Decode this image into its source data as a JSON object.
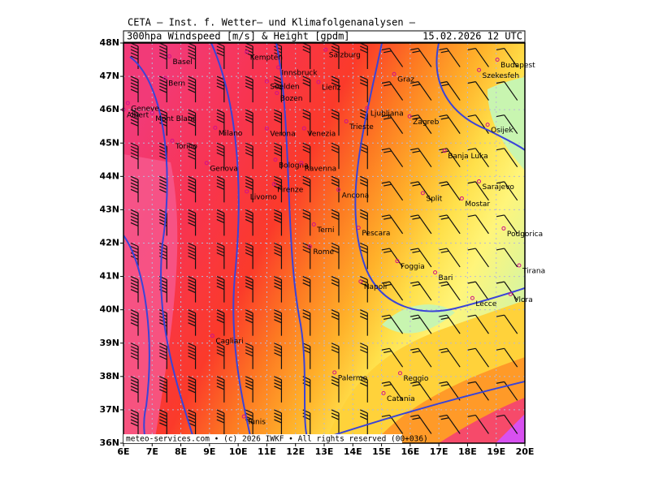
{
  "header": {
    "institute": "CETA — Inst. f. Wetter— und Klimafolgenanalysen —",
    "product": "300hpa Windspeed [m/s] & Height [gpdm]",
    "date": "15.02.2026 12 UTC"
  },
  "axes": {
    "lat_labels": [
      "48N",
      "47N",
      "46N",
      "45N",
      "44N",
      "43N",
      "42N",
      "41N",
      "40N",
      "39N",
      "38N",
      "37N",
      "36N"
    ],
    "lon_labels": [
      "6E",
      "7E",
      "8E",
      "9E",
      "10E",
      "11E",
      "12E",
      "13E",
      "14E",
      "15E",
      "16E",
      "17E",
      "18E",
      "19E",
      "20E"
    ]
  },
  "cities": [
    {
      "name": "Basel"
    },
    {
      "name": "Bern"
    },
    {
      "name": "Geneve"
    },
    {
      "name": "Albert"
    },
    {
      "name": "Mont Blanc"
    },
    {
      "name": "Torino"
    },
    {
      "name": "Genova"
    },
    {
      "name": "Milano"
    },
    {
      "name": "Kempten"
    },
    {
      "name": "Innsbruck"
    },
    {
      "name": "Soelden"
    },
    {
      "name": "Bozen"
    },
    {
      "name": "Lienz"
    },
    {
      "name": "Salzburg"
    },
    {
      "name": "Graz"
    },
    {
      "name": "Verona"
    },
    {
      "name": "Venezia"
    },
    {
      "name": "Bologna"
    },
    {
      "name": "Ravenna"
    },
    {
      "name": "Firenze"
    },
    {
      "name": "Livorno"
    },
    {
      "name": "Ancona"
    },
    {
      "name": "Terni"
    },
    {
      "name": "Pescara"
    },
    {
      "name": "Rome"
    },
    {
      "name": "Napoli"
    },
    {
      "name": "Foggia"
    },
    {
      "name": "Bari"
    },
    {
      "name": "Lecce"
    },
    {
      "name": "Cagliari"
    },
    {
      "name": "Palermo"
    },
    {
      "name": "Catania"
    },
    {
      "name": "Reggio"
    },
    {
      "name": "Tunis"
    },
    {
      "name": "Ljubljana"
    },
    {
      "name": "Trieste"
    },
    {
      "name": "Zagreb"
    },
    {
      "name": "Split"
    },
    {
      "name": "Banja Luka"
    },
    {
      "name": "Sarajevo"
    },
    {
      "name": "Mostar"
    },
    {
      "name": "Podgorica"
    },
    {
      "name": "Tirana"
    },
    {
      "name": "Vlora"
    },
    {
      "name": "Budapest"
    },
    {
      "name": "Szekesfeh"
    },
    {
      "name": "Osijek"
    }
  ],
  "footer": "meteo-services.com • (c) 2026 IWKF • All rights reserved (00+036)"
}
